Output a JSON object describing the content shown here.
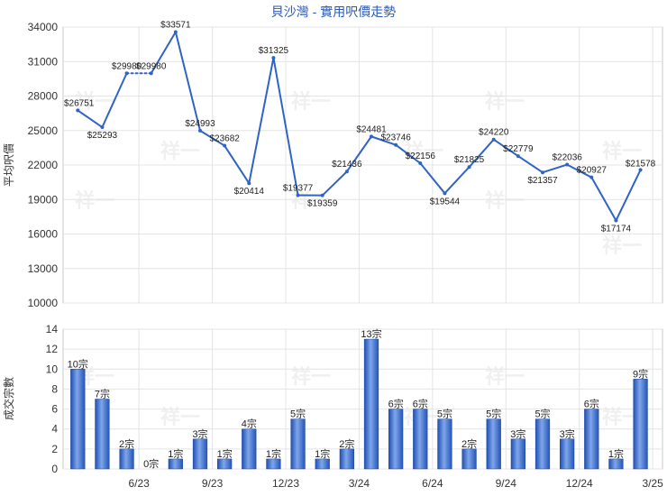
{
  "chart_data": [
    {
      "type": "line",
      "title": "貝沙灣 - 實用呎價走勢",
      "ylabel": "平均呎價",
      "ylim": [
        10000,
        34000
      ],
      "yticks": [
        10000,
        13000,
        16000,
        19000,
        22000,
        25000,
        28000,
        31000,
        34000
      ],
      "x_tick_labels": [
        "6/23",
        "9/23",
        "12/23",
        "3/24",
        "6/24",
        "9/24",
        "12/24",
        "3/25"
      ],
      "x_tick_positions": [
        2.5,
        5.5,
        8.5,
        11.5,
        14.5,
        17.5,
        20.5,
        23.5
      ],
      "series": [
        {
          "values": [
            26751,
            25293,
            29980,
            29980,
            33571,
            24993,
            23682,
            20414,
            31325,
            19377,
            19359,
            21436,
            24481,
            23746,
            22156,
            19544,
            21825,
            24220,
            22779,
            21357,
            22036,
            20927,
            17174,
            21578
          ],
          "labels": [
            "$26751",
            "$25293",
            "$29980",
            "$29980",
            "$33571",
            "$24993",
            "$23682",
            "$20414",
            "$31325",
            "$19377",
            "$19359",
            "$21436",
            "$24481",
            "$23746",
            "$22156",
            "$19544",
            "$21825",
            "$24220",
            "$22779",
            "$21357",
            "$22036",
            "$20927",
            "$17174",
            "$21578"
          ],
          "dashed_segments": [
            [
              2,
              3
            ]
          ],
          "color": "#2f63c6"
        }
      ]
    },
    {
      "type": "bar",
      "ylabel": "成交宗數",
      "ylim": [
        0,
        14
      ],
      "yticks": [
        0,
        2,
        4,
        6,
        8,
        10,
        12,
        14
      ],
      "x_tick_labels": [
        "6/23",
        "9/23",
        "12/23",
        "3/24",
        "6/24",
        "9/24",
        "12/24",
        "3/25"
      ],
      "series": [
        {
          "values": [
            10,
            7,
            2,
            0,
            1,
            3,
            1,
            4,
            1,
            5,
            1,
            2,
            13,
            6,
            6,
            5,
            2,
            5,
            3,
            5,
            3,
            6,
            1,
            9
          ],
          "labels": [
            "10宗",
            "7宗",
            "2宗",
            "0宗",
            "1宗",
            "3宗",
            "1宗",
            "4宗",
            "1宗",
            "5宗",
            "1宗",
            "2宗",
            "13宗",
            "6宗",
            "6宗",
            "5宗",
            "2宗",
            "5宗",
            "3宗",
            "5宗",
            "3宗",
            "6宗",
            "1宗",
            "9宗"
          ],
          "color": "#3a6fd0"
        }
      ]
    }
  ],
  "watermark": "祥一"
}
